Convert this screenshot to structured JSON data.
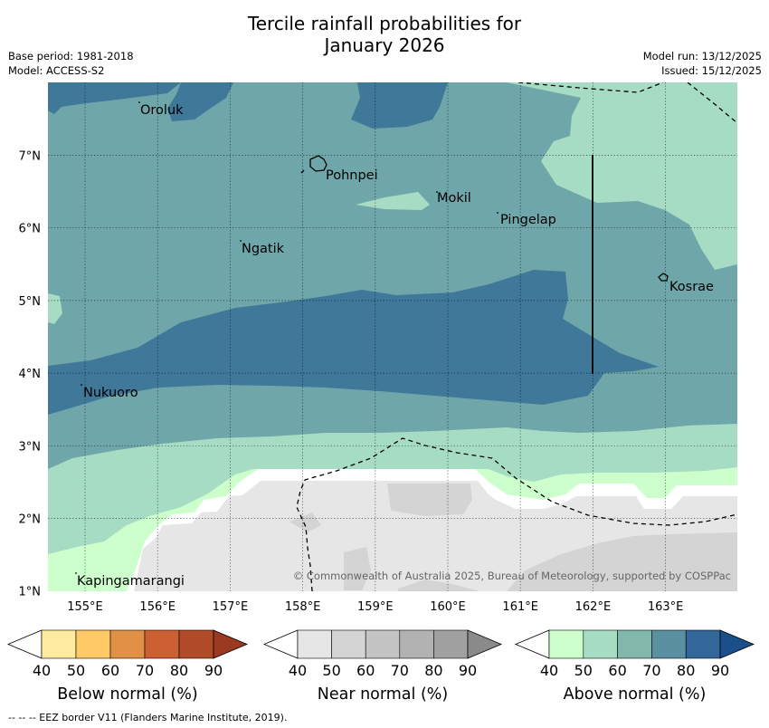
{
  "title_line1": "Tercile rainfall probabilities for",
  "title_line2": "January 2026",
  "meta_left": {
    "base_period": "Base period: 1981-2018",
    "model": "Model: ACCESS-S2"
  },
  "meta_right": {
    "model_run": "Model run: 13/12/2025",
    "issued": "Issued: 15/12/2025"
  },
  "map": {
    "lon_ticks": [
      "155°E",
      "156°E",
      "157°E",
      "158°E",
      "159°E",
      "160°E",
      "161°E",
      "162°E",
      "163°E"
    ],
    "lat_ticks": [
      "7°N",
      "6°N",
      "5°N",
      "4°N",
      "3°N",
      "2°N",
      "1°N"
    ],
    "places": [
      "Oroluk",
      "Pohnpei",
      "Mokil",
      "Pingelap",
      "Ngatik",
      "Kosrae",
      "Nukuoro",
      "Kapingamarangi"
    ],
    "copyright": "© Commonwealth of Australia 2025, Bureau of Meteorology, supported by COSPPac",
    "colors": {
      "above_50": "#a6dcc3",
      "above_60": "#6fa6a9",
      "above_70": "#3f7898",
      "above_40": "#ccffcc",
      "near_40": "#e6e6e6",
      "near_50": "#d4d4d4"
    }
  },
  "colorbars": [
    {
      "title": "Below normal (%)",
      "labels": [
        "40",
        "50",
        "60",
        "70",
        "80",
        "90"
      ],
      "colors": [
        "#ffffff",
        "#ffeb9f",
        "#ffc966",
        "#e09146",
        "#cc6033",
        "#b04a28",
        "#9c3a21"
      ]
    },
    {
      "title": "Near normal (%)",
      "labels": [
        "40",
        "50",
        "60",
        "70",
        "80",
        "90"
      ],
      "colors": [
        "#ffffff",
        "#e6e6e6",
        "#d4d4d4",
        "#c4c4c4",
        "#b2b2b2",
        "#a0a0a0",
        "#8a8a8a"
      ]
    },
    {
      "title": "Above normal (%)",
      "labels": [
        "40",
        "50",
        "60",
        "70",
        "80",
        "90"
      ],
      "colors": [
        "#ffffff",
        "#ccffcc",
        "#a6dcc3",
        "#82b8ab",
        "#5a90a0",
        "#336699",
        "#1a4f8a"
      ]
    }
  ],
  "footer": "--  --  -- EEZ border V11 (Flanders Marine Institute, 2019)."
}
